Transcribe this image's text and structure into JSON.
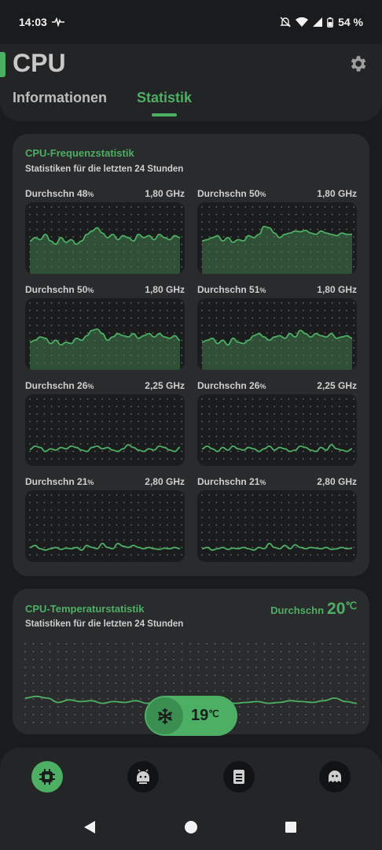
{
  "status": {
    "time": "14:03",
    "battery": "54 %"
  },
  "header": {
    "title": "CPU",
    "tabs": [
      {
        "label": "Informationen",
        "active": false
      },
      {
        "label": "Statistik",
        "active": true
      }
    ]
  },
  "freq": {
    "title": "CPU-Frequenzstatistik",
    "subtitle": "Statistiken für die letzten 24 Stunden",
    "cores": [
      {
        "avg_label": "Durchschn",
        "avg_value": "48",
        "pct": "%",
        "ghz": "1,80 GHz",
        "level": 0.62,
        "series": [
          0.5,
          0.55,
          0.52,
          0.6,
          0.5,
          0.45,
          0.55,
          0.48,
          0.52,
          0.45,
          0.5,
          0.6,
          0.65,
          0.7,
          0.62,
          0.55,
          0.6,
          0.52,
          0.58,
          0.55,
          0.5,
          0.6,
          0.55,
          0.58,
          0.52,
          0.6,
          0.55,
          0.52,
          0.58,
          0.55
        ]
      },
      {
        "avg_label": "Durchschn",
        "avg_value": "50",
        "pct": "%",
        "ghz": "1,80 GHz",
        "level": 0.64,
        "series": [
          0.5,
          0.52,
          0.55,
          0.58,
          0.5,
          0.55,
          0.48,
          0.52,
          0.5,
          0.58,
          0.55,
          0.6,
          0.72,
          0.7,
          0.62,
          0.55,
          0.6,
          0.62,
          0.65,
          0.64,
          0.66,
          0.62,
          0.6,
          0.65,
          0.62,
          0.6,
          0.58,
          0.62,
          0.6,
          0.6
        ]
      },
      {
        "avg_label": "Durchschn",
        "avg_value": "50",
        "pct": "%",
        "ghz": "1,80 GHz",
        "level": 0.6,
        "series": [
          0.42,
          0.45,
          0.5,
          0.48,
          0.4,
          0.45,
          0.38,
          0.42,
          0.4,
          0.48,
          0.45,
          0.52,
          0.6,
          0.62,
          0.55,
          0.45,
          0.5,
          0.55,
          0.52,
          0.5,
          0.55,
          0.48,
          0.52,
          0.55,
          0.5,
          0.55,
          0.5,
          0.48,
          0.52,
          0.45
        ]
      },
      {
        "avg_label": "Durchschn",
        "avg_value": "51",
        "pct": "%",
        "ghz": "1,80 GHz",
        "level": 0.6,
        "series": [
          0.42,
          0.45,
          0.48,
          0.4,
          0.45,
          0.38,
          0.48,
          0.42,
          0.4,
          0.45,
          0.52,
          0.55,
          0.5,
          0.45,
          0.5,
          0.52,
          0.48,
          0.55,
          0.5,
          0.6,
          0.55,
          0.5,
          0.55,
          0.52,
          0.5,
          0.55,
          0.48,
          0.5,
          0.52,
          0.48
        ]
      },
      {
        "avg_label": "Durchschn",
        "avg_value": "26",
        "pct": "%",
        "ghz": "2,25 GHz",
        "level": 0.3,
        "series": [
          0.25,
          0.3,
          0.28,
          0.22,
          0.26,
          0.24,
          0.28,
          0.26,
          0.3,
          0.28,
          0.24,
          0.22,
          0.28,
          0.3,
          0.26,
          0.28,
          0.24,
          0.22,
          0.26,
          0.32,
          0.28,
          0.24,
          0.22,
          0.26,
          0.24,
          0.3,
          0.28,
          0.24,
          0.22,
          0.28
        ]
      },
      {
        "avg_label": "Durchschn",
        "avg_value": "26",
        "pct": "%",
        "ghz": "2,25 GHz",
        "level": 0.3,
        "series": [
          0.26,
          0.3,
          0.26,
          0.22,
          0.28,
          0.24,
          0.3,
          0.26,
          0.24,
          0.28,
          0.26,
          0.22,
          0.26,
          0.3,
          0.24,
          0.28,
          0.26,
          0.22,
          0.24,
          0.3,
          0.28,
          0.24,
          0.22,
          0.28,
          0.24,
          0.32,
          0.26,
          0.24,
          0.22,
          0.26
        ]
      },
      {
        "avg_label": "Durchschn",
        "avg_value": "21",
        "pct": "%",
        "ghz": "2,80 GHz",
        "level": 0.25,
        "series": [
          0.22,
          0.25,
          0.2,
          0.18,
          0.2,
          0.22,
          0.19,
          0.21,
          0.2,
          0.22,
          0.18,
          0.25,
          0.22,
          0.2,
          0.28,
          0.22,
          0.2,
          0.28,
          0.24,
          0.22,
          0.25,
          0.22,
          0.2,
          0.22,
          0.2,
          0.19,
          0.21,
          0.2,
          0.22,
          0.2
        ]
      },
      {
        "avg_label": "Durchschn",
        "avg_value": "21",
        "pct": "%",
        "ghz": "2,80 GHz",
        "level": 0.25,
        "series": [
          0.2,
          0.22,
          0.18,
          0.2,
          0.22,
          0.19,
          0.21,
          0.2,
          0.22,
          0.2,
          0.18,
          0.22,
          0.2,
          0.28,
          0.22,
          0.2,
          0.25,
          0.2,
          0.26,
          0.22,
          0.2,
          0.22,
          0.21,
          0.2,
          0.22,
          0.19,
          0.2,
          0.22,
          0.2,
          0.21
        ]
      }
    ]
  },
  "temp": {
    "title": "CPU-Temperaturstatistik",
    "subtitle": "Statistiken für die letzten 24 Stunden",
    "avg_label": "Durchschn",
    "avg_value": "20",
    "unit": "℃",
    "current": "19",
    "series": [
      0.5,
      0.52,
      0.5,
      0.45,
      0.48,
      0.46,
      0.47,
      0.44,
      0.46,
      0.45,
      0.47,
      0.44,
      0.46,
      0.45,
      0.5,
      0.45,
      0.46,
      0.44,
      0.45,
      0.44,
      0.45,
      0.46,
      0.44,
      0.45,
      0.47,
      0.46,
      0.45,
      0.47,
      0.5,
      0.46,
      0.44
    ]
  },
  "nav": {
    "items": [
      "cpu-icon",
      "robot-icon",
      "memory-icon",
      "ghost-icon"
    ],
    "active": 0
  }
}
